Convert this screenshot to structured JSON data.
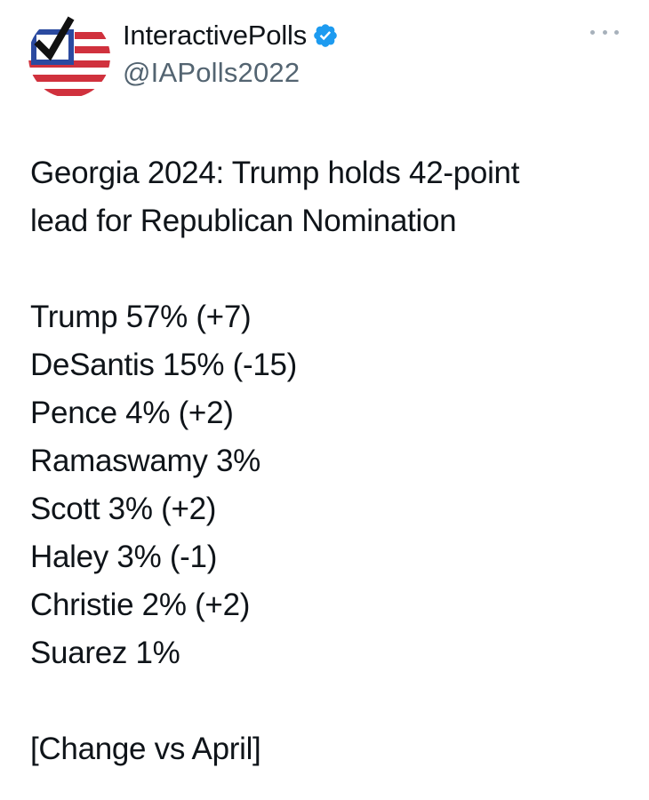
{
  "author": {
    "display_name": "InteractivePolls",
    "handle": "@IAPolls2022",
    "verified": true,
    "avatar_icon": "flag-checkmark-logo",
    "verified_icon": "verified-badge-icon",
    "verified_color": "#1d9bf0"
  },
  "more_icon": "more-options-icon",
  "tweet": {
    "headline": [
      "Georgia 2024: Trump holds 42-point",
      "lead for Republican Nomination"
    ],
    "results": [
      "Trump 57% (+7)",
      "DeSantis 15% (-15)",
      "Pence 4% (+2)",
      "Ramaswamy 3%",
      "Scott 3% (+2)",
      "Haley 3% (-1)",
      "Christie 2% (+2)",
      "Suarez 1%"
    ],
    "footnote": "[Change vs April]"
  },
  "colors": {
    "text": "#0f1419",
    "secondary_text": "#536471",
    "flag_red": "#d0313d",
    "flag_blue": "#2b4aa0"
  }
}
